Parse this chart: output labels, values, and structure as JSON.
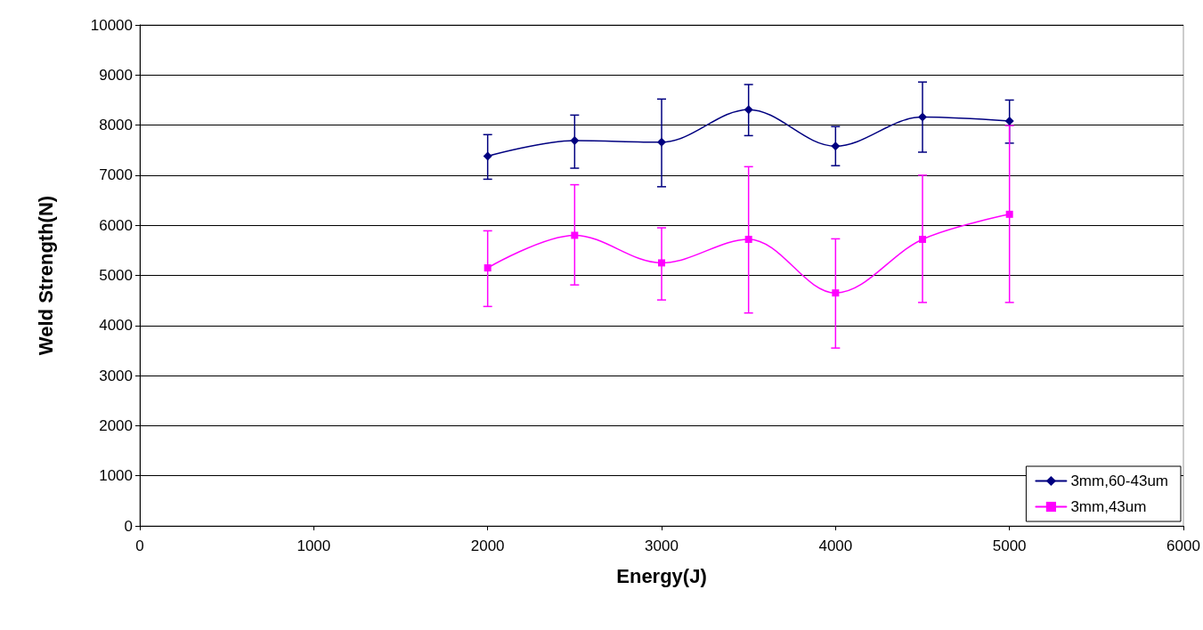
{
  "chart_data": {
    "type": "line",
    "xlabel": "Energy(J)",
    "ylabel": "Weld Strength(N)",
    "x": [
      2000,
      2500,
      3000,
      3500,
      4000,
      4500,
      5000
    ],
    "series": [
      {
        "name": "3mm,60-43um",
        "color": "#000080",
        "marker": "diamond",
        "values": [
          7380,
          7690,
          7660,
          8310,
          7580,
          8160,
          8080
        ],
        "errors": [
          [
            6920,
            7810
          ],
          [
            7140,
            8200
          ],
          [
            6770,
            8520
          ],
          [
            7790,
            8810
          ],
          [
            7190,
            7970
          ],
          [
            7460,
            8860
          ],
          [
            7640,
            8500
          ]
        ]
      },
      {
        "name": "3mm,43um",
        "color": "#ff00ff",
        "marker": "square",
        "values": [
          5150,
          5800,
          5250,
          5720,
          4650,
          5720,
          6220
        ],
        "errors": [
          [
            4380,
            5890
          ],
          [
            4810,
            6810
          ],
          [
            4510,
            5950
          ],
          [
            4250,
            7170
          ],
          [
            3550,
            5730
          ],
          [
            4460,
            7000
          ],
          [
            4460,
            7990
          ]
        ]
      }
    ],
    "xlim": [
      0,
      6000
    ],
    "xticks": [
      0,
      1000,
      2000,
      3000,
      4000,
      5000,
      6000
    ],
    "ylim": [
      0,
      10000
    ],
    "yticks": [
      0,
      1000,
      2000,
      3000,
      4000,
      5000,
      6000,
      7000,
      8000,
      9000,
      10000
    ],
    "grid": "y",
    "legend": "bottom right",
    "line_style": "solid"
  }
}
